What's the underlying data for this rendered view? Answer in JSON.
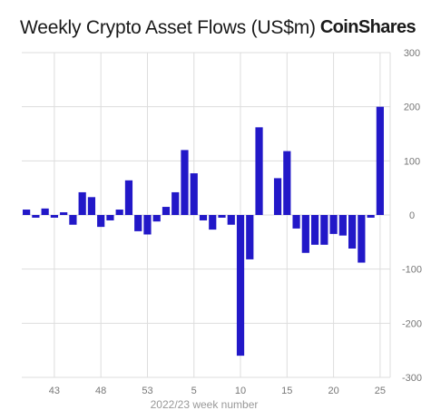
{
  "header": {
    "title": "Weekly Crypto Asset Flows (US$m)",
    "brand": "CoinShares"
  },
  "colors": {
    "bar": "#2218c8",
    "grid": "#dddddd"
  },
  "chart_data": {
    "type": "bar",
    "title": "Weekly Crypto Asset Flows (US$m)",
    "xlabel": "2022/23 week number",
    "ylabel": "",
    "ylim": [
      -300,
      300
    ],
    "yticks": [
      300,
      200,
      100,
      0,
      -100,
      -200,
      -300
    ],
    "x_tick_labels": [
      "43",
      "48",
      "53",
      "5",
      "10",
      "15",
      "20",
      "25"
    ],
    "categories": [
      "40",
      "41",
      "42",
      "43",
      "44",
      "45",
      "46",
      "47",
      "48",
      "49",
      "50",
      "51",
      "52",
      "53",
      "1",
      "2",
      "3",
      "4",
      "5",
      "6",
      "7",
      "8",
      "9",
      "10",
      "11",
      "12",
      "13",
      "14",
      "15",
      "16",
      "17",
      "18",
      "19",
      "20",
      "21",
      "22",
      "23",
      "24",
      "25"
    ],
    "values": [
      10,
      -5,
      12,
      -5,
      5,
      -18,
      42,
      33,
      -22,
      -10,
      10,
      64,
      -30,
      -36,
      -12,
      15,
      42,
      120,
      77,
      -10,
      -27,
      -5,
      -18,
      -260,
      -82,
      162,
      0,
      68,
      118,
      -25,
      -70,
      -55,
      -55,
      -35,
      -38,
      -62,
      -88,
      -5,
      200
    ],
    "grid": true,
    "legend": "none"
  }
}
